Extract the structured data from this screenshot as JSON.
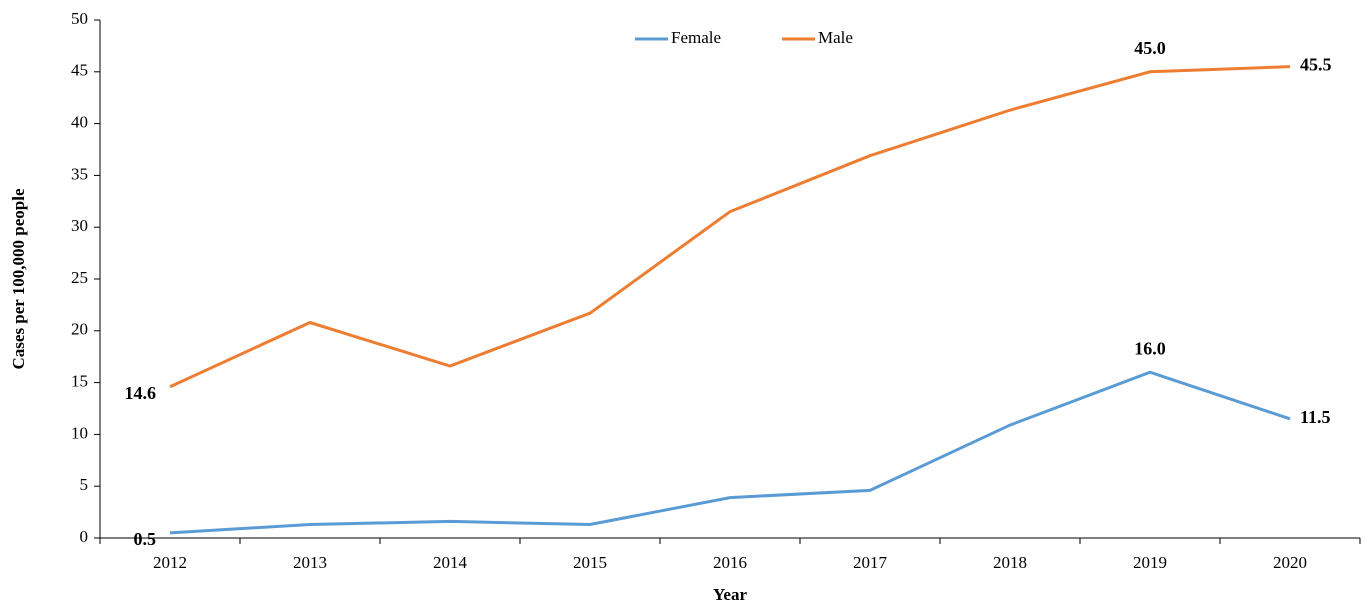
{
  "chart_data": {
    "type": "line",
    "x_label": "Year",
    "y_label": "Cases per 100,000 people",
    "categories": [
      "2012",
      "2013",
      "2014",
      "2015",
      "2016",
      "2017",
      "2018",
      "2019",
      "2020"
    ],
    "series": [
      {
        "name": "Female",
        "color": "#5b9bd5",
        "values": [
          0.5,
          1.3,
          1.6,
          1.3,
          3.9,
          4.6,
          10.9,
          16.0,
          11.5
        ],
        "value_labels": [
          "0.5",
          null,
          null,
          null,
          null,
          null,
          null,
          "16.0",
          "11.5"
        ]
      },
      {
        "name": "Male",
        "color": "#ed7d31",
        "values": [
          14.6,
          20.8,
          16.6,
          21.7,
          31.5,
          36.9,
          41.3,
          45.0,
          45.5
        ],
        "value_labels": [
          "14.6",
          null,
          null,
          null,
          null,
          null,
          null,
          "45.0",
          "45.5"
        ]
      }
    ],
    "ylim": [
      0,
      50
    ],
    "yticks": [
      0,
      5,
      10,
      15,
      20,
      25,
      30,
      35,
      40,
      45,
      50
    ],
    "legend": "top",
    "grid": false
  }
}
